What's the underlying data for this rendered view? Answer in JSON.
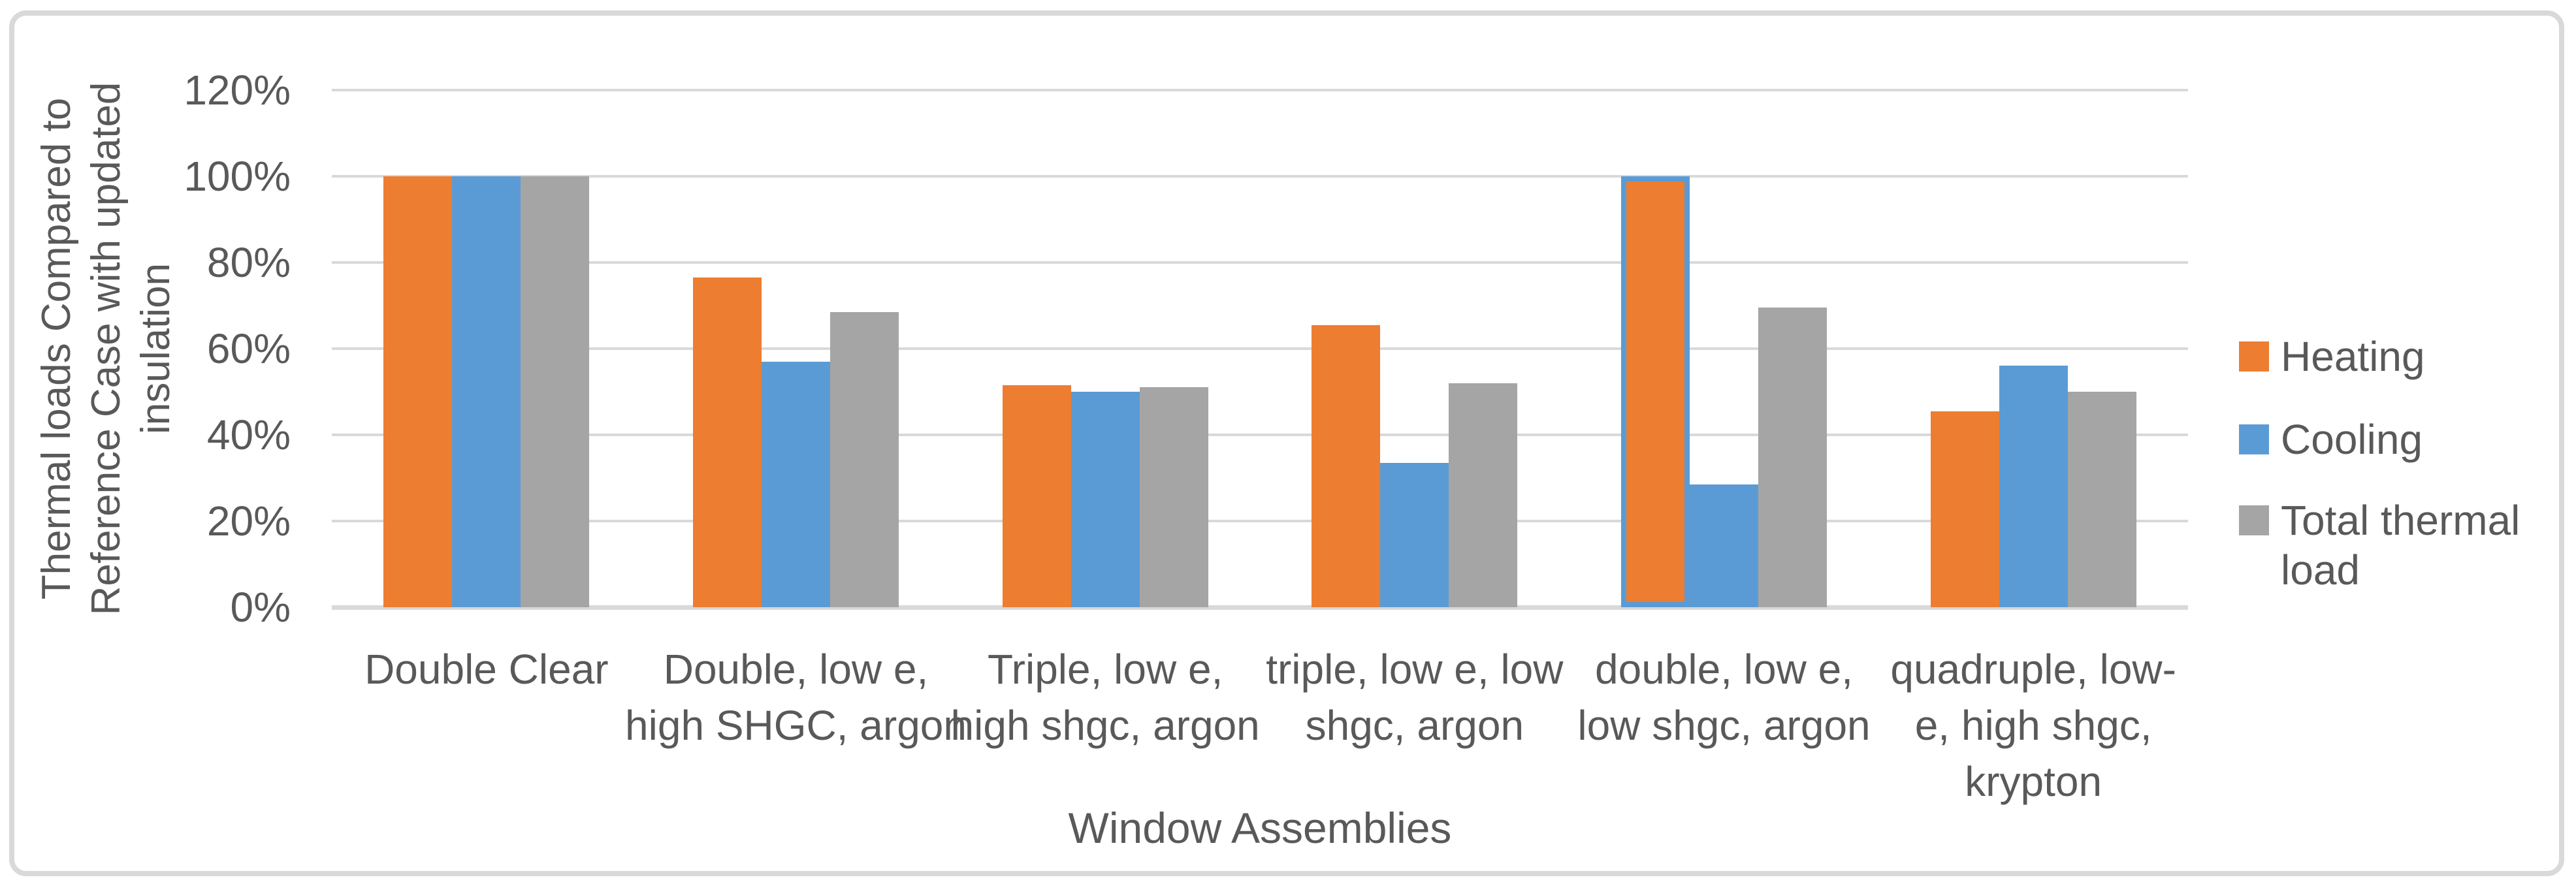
{
  "chart_data": {
    "type": "bar",
    "title": "",
    "xlabel": "Window Assemblies",
    "ylabel": "Thermal loads  Compared to Reference Case with updated insulation",
    "ylabel_lines": [
      "Thermal loads  Compared to",
      "Reference Case with updated",
      "insulation"
    ],
    "ylim": [
      0,
      120
    ],
    "y_unit": "%",
    "grid": true,
    "legend_position": "right",
    "y_ticks": [
      {
        "label": "120%",
        "value": 120
      },
      {
        "label": "100%",
        "value": 100
      },
      {
        "label": "80%",
        "value": 80
      },
      {
        "label": "60%",
        "value": 60
      },
      {
        "label": "40%",
        "value": 40
      },
      {
        "label": "20%",
        "value": 20
      },
      {
        "label": "0%",
        "value": 0
      }
    ],
    "categories": [
      {
        "label": "Double Clear",
        "label_lines": [
          "Double Clear"
        ]
      },
      {
        "label": "Double, low e, high SHGC, argon",
        "label_lines": [
          "Double, low e,",
          "high SHGC, argon"
        ]
      },
      {
        "label": "Triple, low e, high shgc, argon",
        "label_lines": [
          "Triple, low e,",
          "high shgc, argon"
        ]
      },
      {
        "label": "triple, low e, low shgc, argon",
        "label_lines": [
          "triple, low e, low",
          "shgc, argon"
        ]
      },
      {
        "label": "double, low e, low shgc, argon",
        "label_lines": [
          "double, low e,",
          "low shgc, argon"
        ]
      },
      {
        "label": "quadruple, low-e, high shgc, krypton",
        "label_lines": [
          "quadruple, low-",
          "e, high shgc,",
          "krypton"
        ]
      }
    ],
    "series": [
      {
        "name": "Heating",
        "color": "#ED7D31",
        "values_pct": [
          100,
          76.5,
          51.5,
          65.5,
          100,
          45.5
        ]
      },
      {
        "name": "Cooling",
        "color": "#5B9BD5",
        "values_pct": [
          100,
          57,
          50,
          33.5,
          28.5,
          56
        ]
      },
      {
        "name": "Total thermal load",
        "color": "#A5A5A5",
        "values_pct": [
          100,
          68.5,
          51,
          52,
          69.5,
          50
        ]
      }
    ],
    "selection": {
      "series_index": 0,
      "category_index": 4,
      "outline_color": "#5B9BD5"
    }
  },
  "legend": {
    "items": [
      {
        "label": "Heating",
        "label_lines": [
          "Heating"
        ],
        "color": "#ED7D31"
      },
      {
        "label": "Cooling",
        "label_lines": [
          "Cooling"
        ],
        "color": "#5B9BD5"
      },
      {
        "label": "Total thermal load",
        "label_lines": [
          "Total thermal",
          "load"
        ],
        "color": "#A5A5A5"
      }
    ]
  },
  "styles": {
    "text_color": "#595959",
    "grid_color": "#D9D9D9",
    "frame_color": "#D9D9D9",
    "background": "#FFFFFF"
  }
}
